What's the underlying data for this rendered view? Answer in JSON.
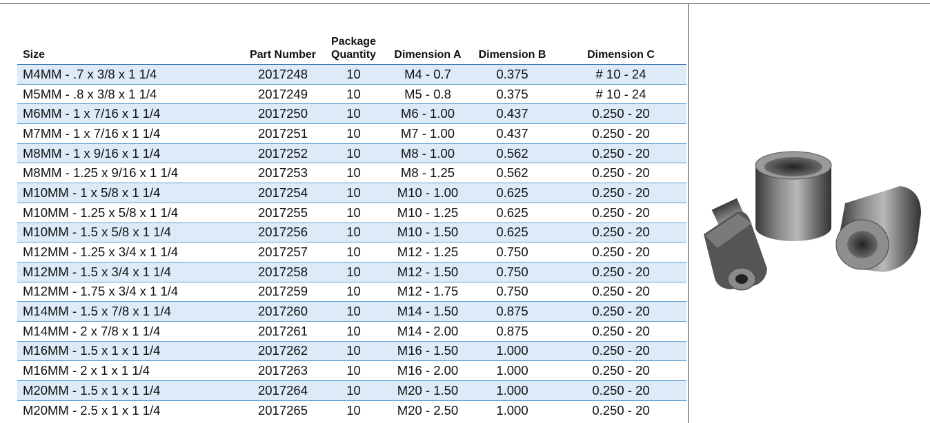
{
  "table": {
    "headers": [
      "Size",
      "Part Number",
      "Package Quantity",
      "Dimension A",
      "Dimension B",
      "Dimension C"
    ],
    "rows": [
      [
        "M4MM - .7 x 3/8 x 1 1/4",
        "2017248",
        "10",
        "M4 - 0.7",
        "0.375",
        "# 10 - 24"
      ],
      [
        "M5MM - .8 x 3/8 x 1 1/4",
        "2017249",
        "10",
        "M5 - 0.8",
        "0.375",
        "# 10 - 24"
      ],
      [
        "M6MM - 1 x 7/16 x 1 1/4",
        "2017250",
        "10",
        "M6 - 1.00",
        "0.437",
        "0.250 - 20"
      ],
      [
        "M7MM - 1 x 7/16 x 1 1/4",
        "2017251",
        "10",
        "M7 - 1.00",
        "0.437",
        "0.250 - 20"
      ],
      [
        "M8MM - 1 x 9/16 x 1 1/4",
        "2017252",
        "10",
        "M8 - 1.00",
        "0.562",
        "0.250 - 20"
      ],
      [
        "M8MM - 1.25 x 9/16 x 1 1/4",
        "2017253",
        "10",
        "M8 - 1.25",
        "0.562",
        "0.250 - 20"
      ],
      [
        "M10MM - 1 x 5/8 x 1 1/4",
        "2017254",
        "10",
        "M10 - 1.00",
        "0.625",
        "0.250 - 20"
      ],
      [
        "M10MM - 1.25 x 5/8 x 1 1/4",
        "2017255",
        "10",
        "M10 - 1.25",
        "0.625",
        "0.250 - 20"
      ],
      [
        "M10MM - 1.5 x 5/8 x 1 1/4",
        "2017256",
        "10",
        "M10 - 1.50",
        "0.625",
        "0.250 - 20"
      ],
      [
        "M12MM - 1.25 x 3/4 x 1 1/4",
        "2017257",
        "10",
        "M12 - 1.25",
        "0.750",
        "0.250 - 20"
      ],
      [
        "M12MM - 1.5 x 3/4 x 1 1/4",
        "2017258",
        "10",
        "M12 - 1.50",
        "0.750",
        "0.250 - 20"
      ],
      [
        "M12MM - 1.75 x 3/4 x 1 1/4",
        "2017259",
        "10",
        "M12 - 1.75",
        "0.750",
        "0.250 - 20"
      ],
      [
        "M14MM - 1.5 x 7/8 x 1 1/4",
        "2017260",
        "10",
        "M14 - 1.50",
        "0.875",
        "0.250 - 20"
      ],
      [
        "M14MM - 2 x 7/8 x 1 1/4",
        "2017261",
        "10",
        "M14 - 2.00",
        "0.875",
        "0.250 - 20"
      ],
      [
        "M16MM - 1.5 x 1 x 1 1/4",
        "2017262",
        "10",
        "M16 - 1.50",
        "1.000",
        "0.250 - 20"
      ],
      [
        "M16MM - 2 x 1 x 1 1/4",
        "2017263",
        "10",
        "M16 - 2.00",
        "1.000",
        "0.250 - 20"
      ],
      [
        "M20MM - 1.5 x 1 x 1 1/4",
        "2017264",
        "10",
        "M20 - 1.50",
        "1.000",
        "0.250 - 20"
      ],
      [
        "M20MM - 2.5 x 1 x 1 1/4",
        "2017265",
        "10",
        "M20 - 2.50",
        "1.000",
        "0.250 - 20"
      ]
    ]
  }
}
